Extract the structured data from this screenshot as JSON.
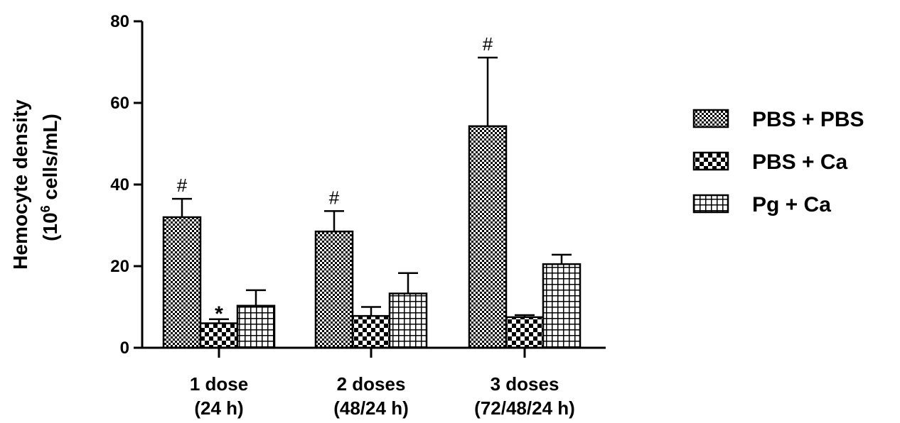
{
  "chart_data": {
    "type": "bar",
    "title": "",
    "ylabel_line1": "Hemocyte density",
    "ylabel_line2_prefix": "(10",
    "ylabel_line2_sup": "6",
    "ylabel_line2_suffix": " cells/mL)",
    "xlabel": "",
    "ylim": [
      0,
      80
    ],
    "yticks": [
      "0",
      "20",
      "40",
      "60",
      "80"
    ],
    "grid": false,
    "legend_position": "right",
    "categories": [
      {
        "line1": "1 dose",
        "line2": "(24 h)"
      },
      {
        "line1": "2 doses",
        "line2": "(48/24 h)"
      },
      {
        "line1": "3 doses",
        "line2": "(72/48/24 h)"
      }
    ],
    "series": [
      {
        "name": "PBS + PBS",
        "pattern": "dense-checker",
        "values": [
          32,
          28.5,
          54.3
        ],
        "errors": [
          4.5,
          5,
          16.8
        ],
        "annotations": [
          "#",
          "#",
          "#"
        ]
      },
      {
        "name": "PBS + Ca",
        "pattern": "checker",
        "values": [
          6,
          7.8,
          7.5
        ],
        "errors": [
          1,
          2.2,
          0.5
        ],
        "annotations": [
          "*",
          "",
          ""
        ]
      },
      {
        "name": "Pg + Ca",
        "pattern": "grid",
        "values": [
          10.3,
          13.3,
          20.5
        ],
        "errors": [
          3.8,
          5,
          2.3
        ],
        "annotations": [
          "",
          "",
          ""
        ]
      }
    ],
    "colors": {
      "ink": "#000000",
      "fill": "#ffffff"
    }
  }
}
